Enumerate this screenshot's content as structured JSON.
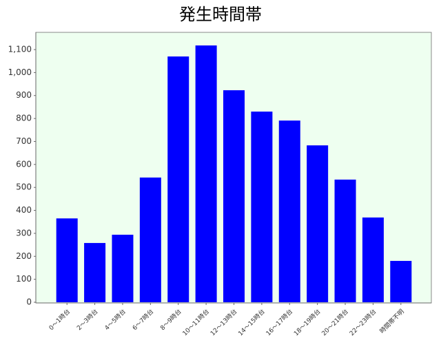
{
  "chart_data": {
    "type": "bar",
    "title": "発生時間帯",
    "categories": [
      "0～1時台",
      "2～3時台",
      "4～5時台",
      "6～7時台",
      "8～9時台",
      "10～11時台",
      "12～13時台",
      "14～15時台",
      "16～17時台",
      "18～19時台",
      "20～21時台",
      "22～23時台",
      "時間帯不明"
    ],
    "values": [
      365,
      258,
      294,
      543,
      1070,
      1118,
      923,
      830,
      791,
      683,
      534,
      369,
      180
    ],
    "color": "#0000ff",
    "ylim": [
      0,
      1175
    ],
    "yticks": [
      0,
      100,
      200,
      300,
      400,
      500,
      600,
      700,
      800,
      900,
      {
        "value": 1000,
        "label": "1,000"
      },
      {
        "value": 1100,
        "label": "1,100"
      }
    ],
    "grid": false
  }
}
